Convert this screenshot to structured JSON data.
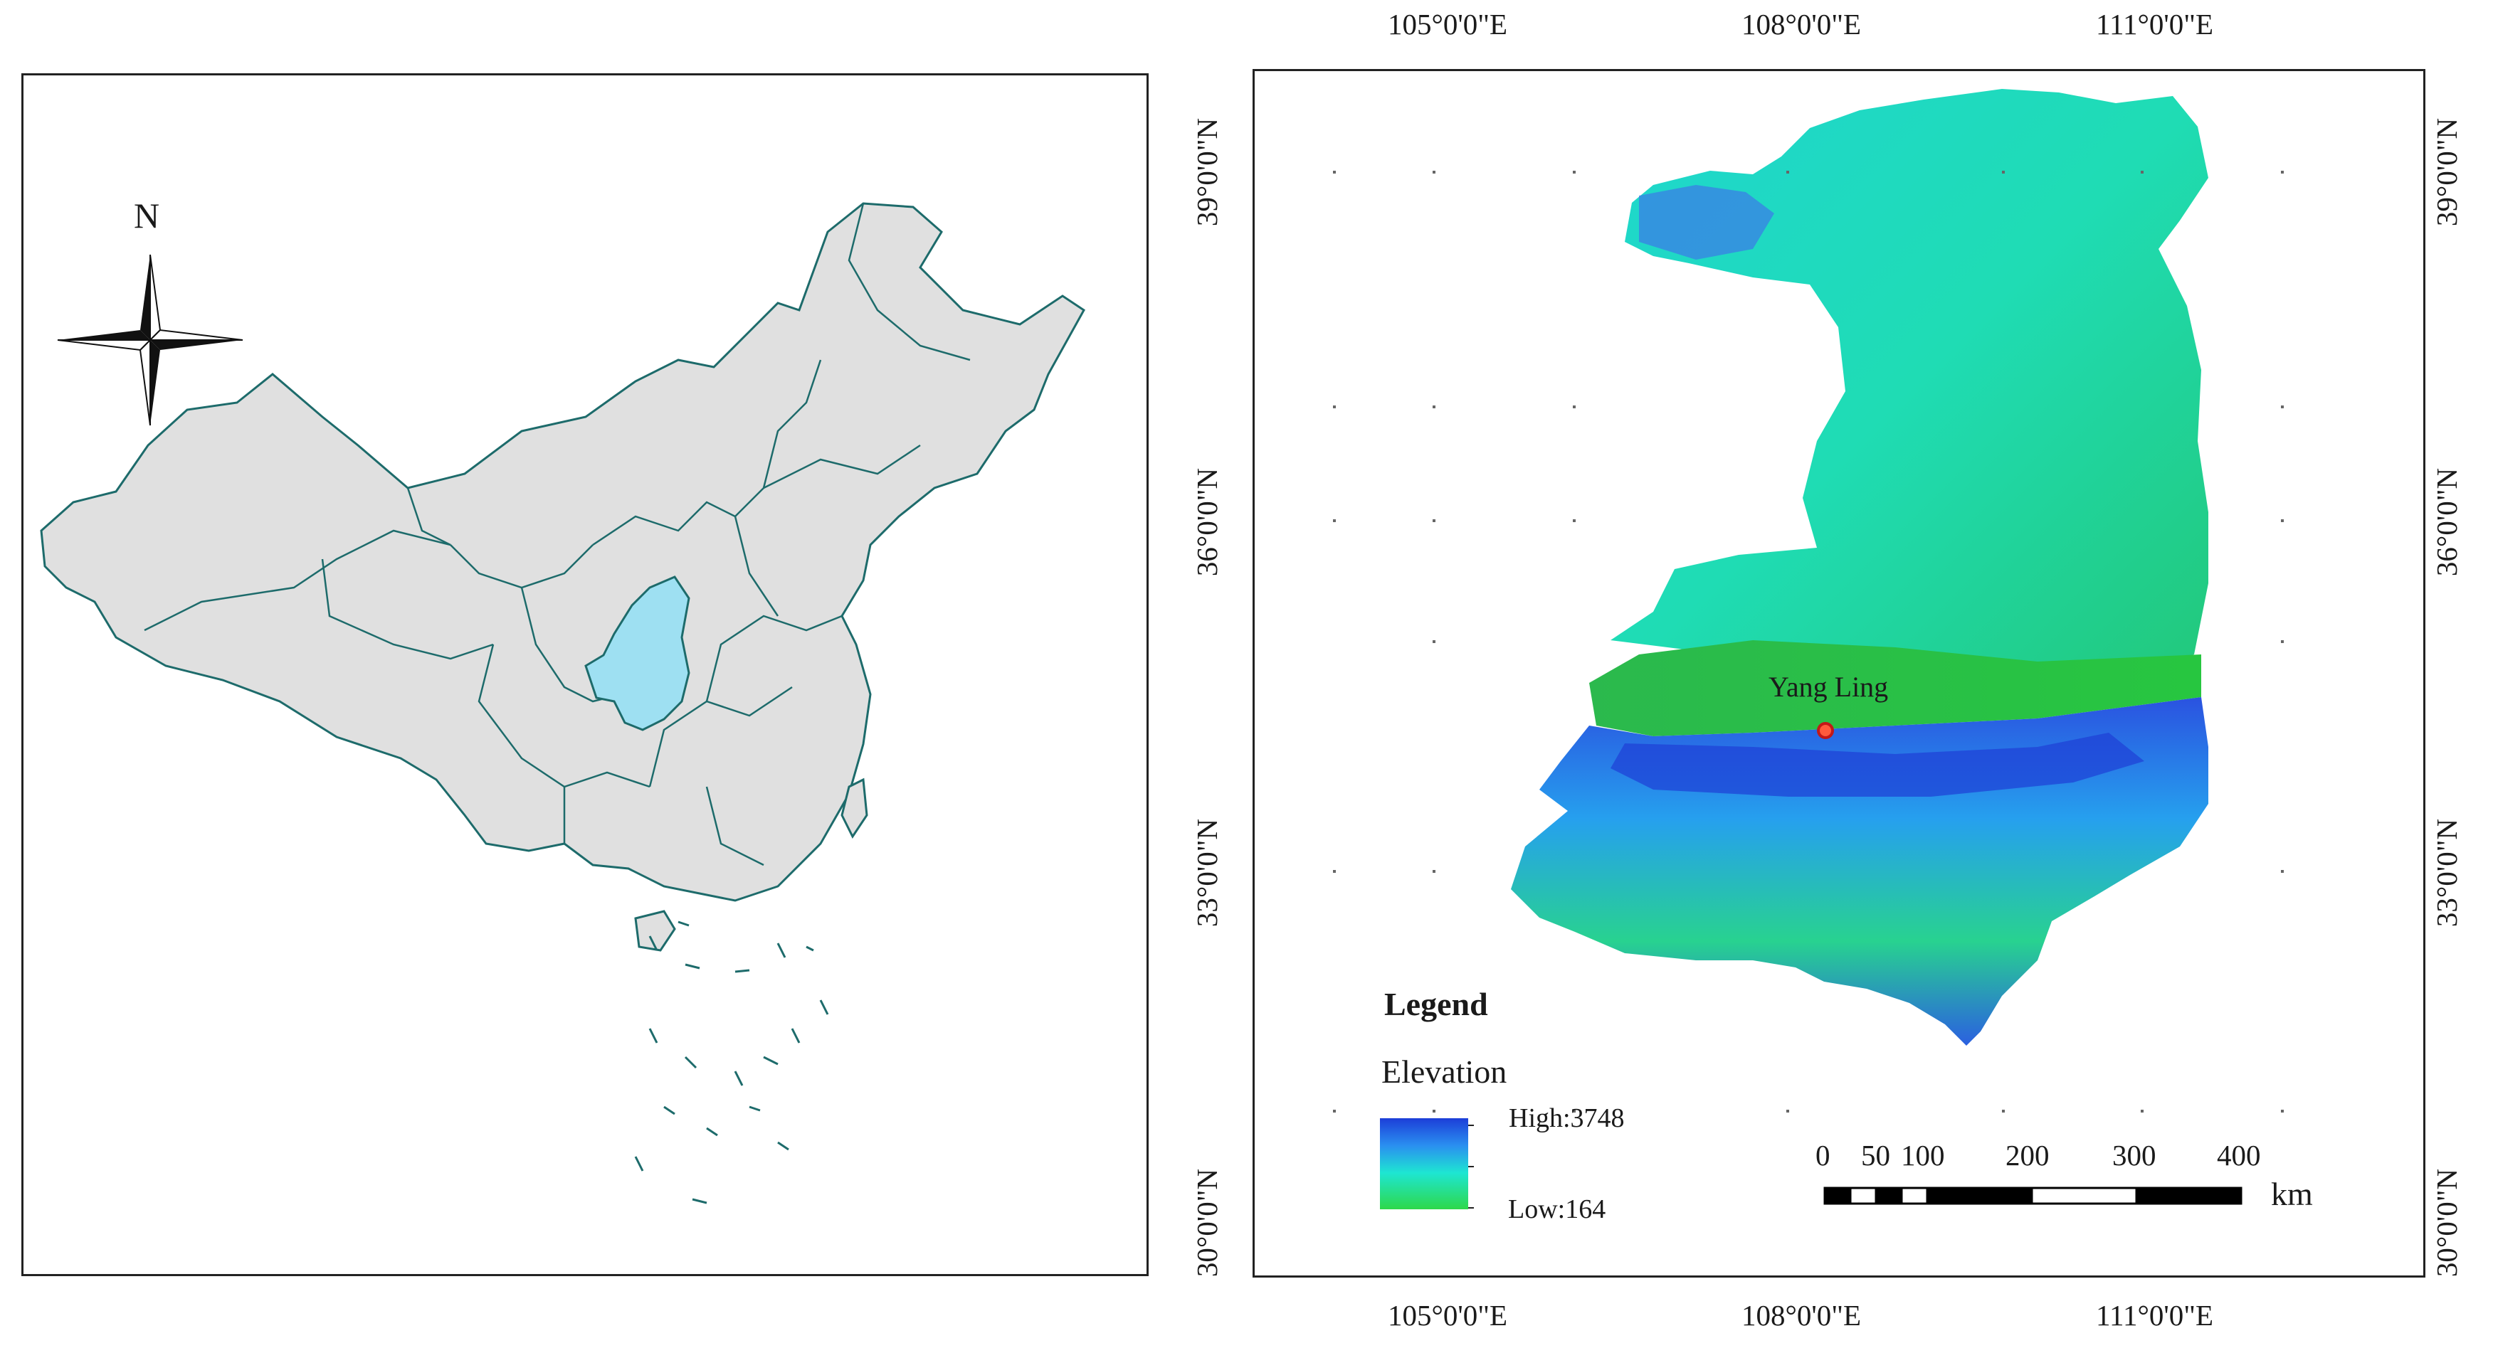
{
  "left_map": {
    "north_label": "N",
    "highlight_region_color": "#9ee0f2",
    "land_color": "#e0e0e0",
    "boundary_color": "#1d6b6b"
  },
  "right_map": {
    "top_lon_labels": [
      "105°0'0\"E",
      "108°0'0\"E",
      "111°0'0\"E"
    ],
    "bottom_lon_labels": [
      "105°0'0\"E",
      "108°0'0\"E",
      "111°0'0\"E"
    ],
    "left_lat_labels": [
      "39°0'0\"N",
      "36°0'0\"N",
      "33°0'0\"N",
      "30°0'0\"N"
    ],
    "right_lat_labels": [
      "39°0'0\"N",
      "36°0'0\"N",
      "33°0'0\"N",
      "30°0'0\"N"
    ],
    "site_label": "Yang Ling",
    "site_marker_color": "#d42020",
    "legend": {
      "title": "Legend",
      "layer": "Elevation",
      "high_label": "High:3748",
      "low_label": "Low:164",
      "ramp_colors": [
        "#1c3ed8",
        "#2a8ff0",
        "#1ee6d2",
        "#2ed84a"
      ]
    },
    "scale_bar": {
      "labels": [
        "0",
        "50",
        "100",
        "200",
        "300",
        "400"
      ],
      "unit": "km"
    }
  }
}
